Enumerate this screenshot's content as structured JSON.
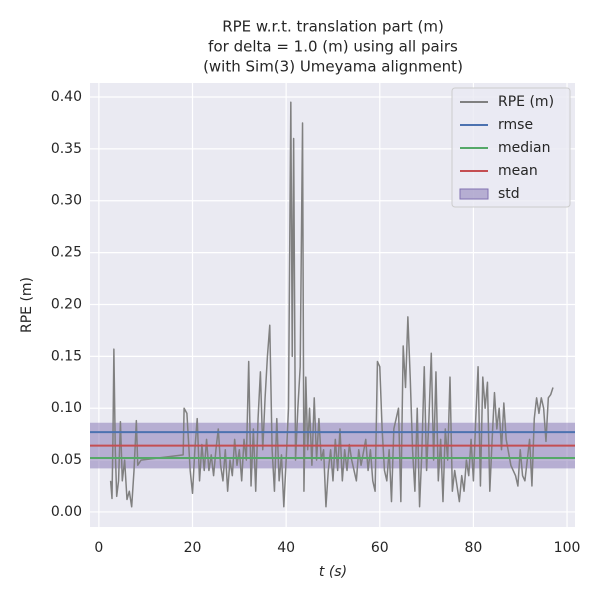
{
  "chart_data": {
    "type": "line",
    "title": [
      "RPE w.r.t. translation part (m)",
      "for delta = 1.0 (m) using all pairs",
      "(with Sim(3) Umeyama alignment)"
    ],
    "x_label": "t (s)",
    "y_label": "RPE (m)",
    "xlim": [
      -1.9,
      101.7
    ],
    "ylim": [
      -0.0145,
      0.4135
    ],
    "xticks": [
      0,
      20,
      40,
      60,
      80,
      100
    ],
    "yticks": [
      {
        "value": 0,
        "label": "0.00"
      },
      0.05,
      {
        "value": 0.1,
        "label": "0.10"
      },
      0.15,
      {
        "value": 0.2,
        "label": "0.20"
      },
      0.25,
      {
        "value": 0.3,
        "label": "0.30"
      },
      0.35,
      {
        "value": 0.4,
        "label": "0.40"
      }
    ],
    "grid": true,
    "legend": "upper right",
    "series": [
      {
        "name": "RPE (m)",
        "color": "#808080",
        "x": [
          2.5,
          2.8,
          3.0,
          3.2,
          3.5,
          3.8,
          4.2,
          4.6,
          5.0,
          5.5,
          6,
          6.5,
          7,
          7.5,
          8,
          8.3,
          9,
          18,
          18.2,
          18.8,
          19.5,
          20,
          20.5,
          21,
          21.5,
          22,
          22.5,
          23,
          23.5,
          24,
          24.5,
          25,
          25.5,
          26,
          26.5,
          27,
          27.5,
          28,
          28.5,
          29,
          29.5,
          30,
          30.5,
          31,
          31.5,
          32,
          32.5,
          33,
          33.5,
          34,
          34.5,
          35,
          35.5,
          36,
          36.5,
          37,
          37.5,
          38,
          38.5,
          39,
          39.5,
          40,
          40.5,
          41,
          41.3,
          41.6,
          42,
          42.5,
          43,
          43.5,
          43.8,
          44.2,
          44.6,
          45,
          45.5,
          46,
          46.5,
          47,
          47.5,
          48,
          48.5,
          49,
          49.5,
          50,
          50.5,
          51,
          51.5,
          52,
          52.5,
          53,
          53.5,
          54,
          55,
          55.5,
          56,
          57,
          57.5,
          58,
          58.5,
          59,
          59.5,
          60,
          60.5,
          61,
          61.5,
          62,
          62.5,
          63,
          63.5,
          64,
          64.5,
          65,
          65.5,
          66,
          66.5,
          67,
          67.5,
          68,
          68.5,
          69,
          69.5,
          70,
          70.5,
          71,
          71.5,
          72,
          72.5,
          73,
          73.5,
          74,
          74.5,
          75,
          75.5,
          76,
          77,
          77.5,
          78,
          78.5,
          79,
          79.5,
          80,
          80.5,
          81,
          81.5,
          82,
          82.5,
          83,
          83.5,
          84,
          84.5,
          85,
          85.5,
          86,
          86.5,
          87,
          88,
          89,
          89.5,
          90,
          90.5,
          91,
          91.5,
          92,
          92.5,
          93,
          93.5,
          94,
          94.5,
          95,
          95.5,
          96,
          96.5,
          97
        ],
        "values": [
          0.03,
          0.013,
          0.07,
          0.157,
          0.06,
          0.015,
          0.03,
          0.087,
          0.03,
          0.05,
          0.012,
          0.02,
          0.005,
          0.04,
          0.088,
          0.045,
          0.05,
          0.055,
          0.1,
          0.095,
          0.04,
          0.018,
          0.06,
          0.09,
          0.03,
          0.065,
          0.04,
          0.07,
          0.04,
          0.055,
          0.035,
          0.06,
          0.08,
          0.045,
          0.03,
          0.06,
          0.02,
          0.05,
          0.035,
          0.07,
          0.045,
          0.06,
          0.03,
          0.07,
          0.05,
          0.145,
          0.025,
          0.08,
          0.02,
          0.09,
          0.135,
          0.06,
          0.11,
          0.15,
          0.18,
          0.06,
          0.02,
          0.09,
          0.03,
          0.055,
          0.005,
          0.05,
          0.1,
          0.395,
          0.15,
          0.36,
          0.05,
          0.1,
          0.14,
          0.375,
          0.02,
          0.13,
          0.06,
          0.1,
          0.045,
          0.11,
          0.05,
          0.09,
          0.05,
          0.06,
          0.005,
          0.04,
          0.06,
          0.03,
          0.07,
          0.04,
          0.08,
          0.03,
          0.06,
          0.04,
          0.065,
          0.05,
          0.03,
          0.06,
          0.045,
          0.07,
          0.04,
          0.06,
          0.03,
          0.02,
          0.145,
          0.14,
          0.08,
          0.04,
          0.03,
          0.06,
          0.01,
          0.08,
          0.09,
          0.1,
          0.01,
          0.16,
          0.12,
          0.188,
          0.13,
          0.06,
          0.02,
          0.1,
          0.005,
          0.06,
          0.14,
          0.04,
          0.09,
          0.153,
          0.05,
          0.135,
          0.03,
          0.07,
          0.01,
          0.08,
          0.05,
          0.13,
          0.02,
          0.04,
          0.01,
          0.035,
          0.02,
          0.05,
          0.035,
          0.07,
          0.03,
          0.09,
          0.14,
          0.025,
          0.13,
          0.1,
          0.125,
          0.02,
          0.07,
          0.115,
          0.08,
          0.1,
          0.06,
          0.105,
          0.07,
          0.045,
          0.035,
          0.025,
          0.06,
          0.035,
          0.03,
          0.05,
          0.07,
          0.025,
          0.09,
          0.11,
          0.095,
          0.11,
          0.1,
          0.068,
          0.11,
          0.113,
          0.12
        ]
      },
      {
        "name": "rmse",
        "color": "#4c72b0",
        "value": 0.077
      },
      {
        "name": "median",
        "color": "#55a868",
        "value": 0.052
      },
      {
        "name": "mean",
        "color": "#c44e52",
        "value": 0.064
      },
      {
        "name": "std",
        "color": "#8172b2",
        "value": 0.022
      }
    ]
  }
}
